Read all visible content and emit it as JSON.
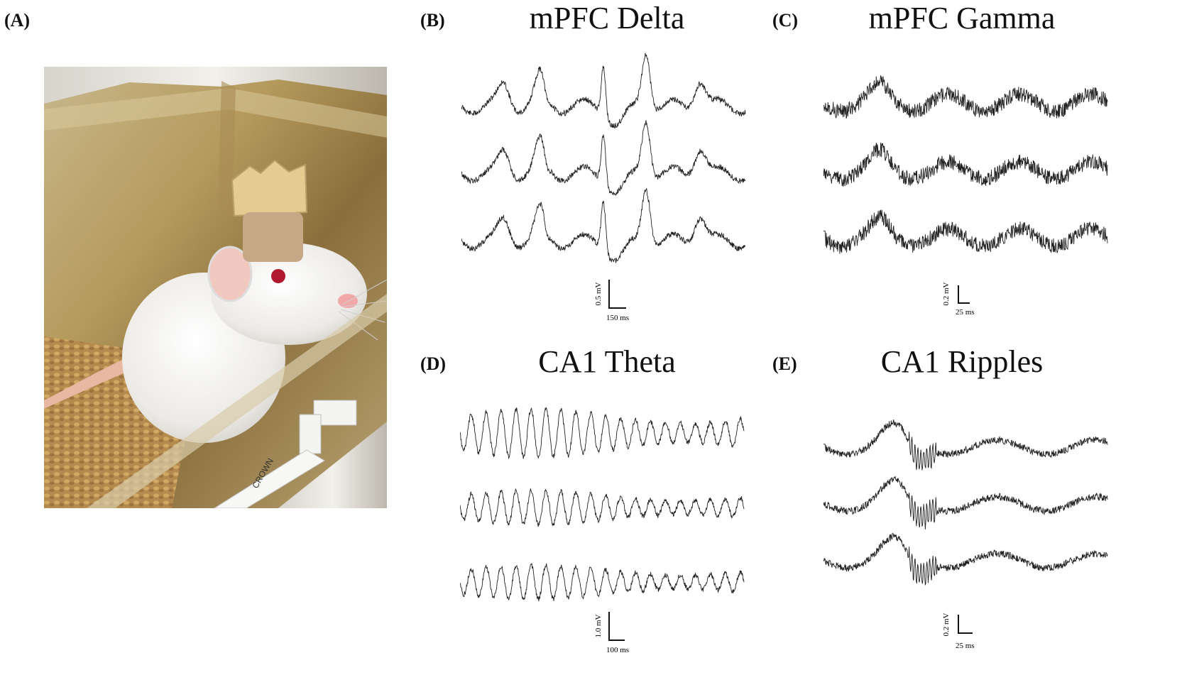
{
  "figure": {
    "panels": [
      {
        "letter": "(A)",
        "kind": "photo",
        "subject": "rat"
      },
      {
        "letter": "(B)",
        "title": "mPFC Delta",
        "scale_v": "0.5 mV",
        "scale_t": "150 ms",
        "traces": 3
      },
      {
        "letter": "(C)",
        "title": "mPFC Gamma",
        "scale_v": "0.2 mV",
        "scale_t": "25 ms",
        "traces": 3
      },
      {
        "letter": "(D)",
        "title": "CA1 Theta",
        "scale_v": "1.0 mV",
        "scale_t": "100 ms",
        "traces": 3
      },
      {
        "letter": "(E)",
        "title": "CA1 Ripples",
        "scale_v": "0.2 mV",
        "scale_t": "25 ms",
        "traces": 3
      }
    ],
    "photo_text": {
      "cable_label": "CROWN"
    }
  }
}
